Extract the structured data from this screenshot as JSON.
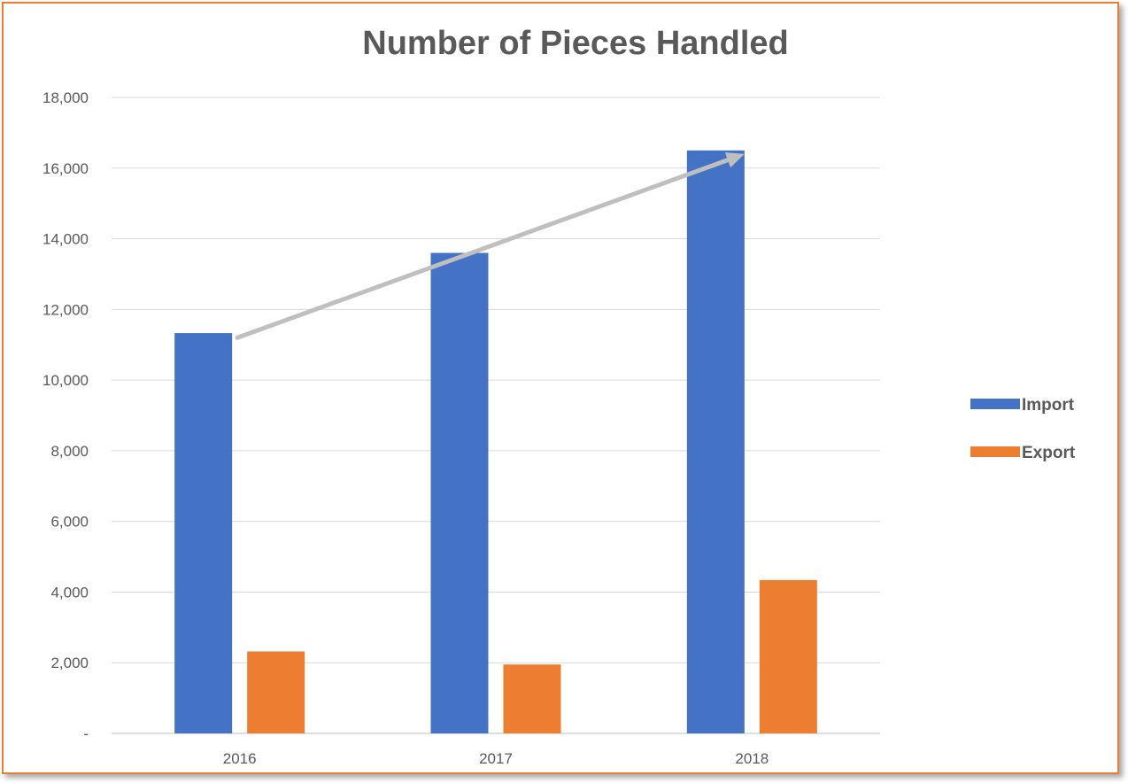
{
  "chart_data": {
    "type": "bar",
    "title": "Number of Pieces Handled",
    "categories": [
      "2016",
      "2017",
      "2018"
    ],
    "series": [
      {
        "name": "Import",
        "color": "#4472C4",
        "values": [
          11330,
          13600,
          16500
        ]
      },
      {
        "name": "Export",
        "color": "#ED7D31",
        "values": [
          2320,
          1950,
          4340
        ]
      }
    ],
    "ylim": [
      0,
      18000
    ],
    "yticks": [
      0,
      2000,
      4000,
      6000,
      8000,
      10000,
      12000,
      14000,
      16000,
      18000
    ],
    "ytick_labels": [
      "-",
      "2,000",
      "4,000",
      "6,000",
      "8,000",
      "10,000",
      "12,000",
      "14,000",
      "16,000",
      "18,000"
    ],
    "grid": true,
    "legend": "right",
    "trend_arrow": {
      "from": {
        "category": "2016",
        "value": 11200
      },
      "to": {
        "category": "2018",
        "value": 16400
      },
      "color": "#BFBFBF"
    }
  }
}
